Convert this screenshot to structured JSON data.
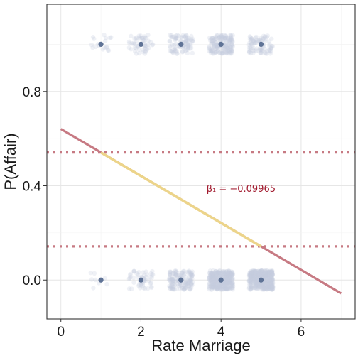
{
  "chart_data": {
    "type": "scatter",
    "title": "",
    "xlabel": "Rate Marriage",
    "ylabel": "P(Affair)",
    "xlim": [
      -0.35,
      7.35
    ],
    "ylim": [
      -0.165,
      1.17
    ],
    "x_ticks": [
      0,
      2,
      4,
      6
    ],
    "x_tick_labels": [
      "0",
      "2",
      "4",
      "6"
    ],
    "y_ticks": [
      0.0,
      0.4,
      0.8
    ],
    "y_tick_labels": [
      "0.0",
      "0.4",
      "0.8"
    ],
    "grid": true,
    "categories": [
      1,
      2,
      3,
      4,
      5
    ],
    "series": [
      {
        "kind": "outcome-points",
        "outcome": 1,
        "values": [
          1,
          1,
          1,
          1,
          1
        ],
        "jitter_counts": [
          18,
          55,
          95,
          180,
          90
        ],
        "color": "#5f7396",
        "jitter_color": "#c5cde0"
      },
      {
        "kind": "outcome-points",
        "outcome": 0,
        "values": [
          0,
          0,
          0,
          0,
          0
        ],
        "jitter_counts": [
          8,
          55,
          160,
          350,
          420
        ],
        "color": "#5f7396",
        "jitter_color": "#c5cde0"
      },
      {
        "kind": "fit-line",
        "x": [
          0,
          7
        ],
        "y": [
          0.6409,
          -0.0566
        ],
        "color": "#c77a83",
        "highlight_x": [
          1,
          5
        ],
        "highlight_color": "#ecd48a"
      },
      {
        "kind": "reference-line",
        "y": 0.5413,
        "color": "#c77a83",
        "style": "dotted"
      },
      {
        "kind": "reference-line",
        "y": 0.1427,
        "color": "#c77a83",
        "style": "dotted"
      }
    ],
    "annotations": [
      {
        "text": "β₁ = −0.09965",
        "x": 4.5,
        "y": 0.375,
        "color": "#a21c30"
      }
    ]
  }
}
